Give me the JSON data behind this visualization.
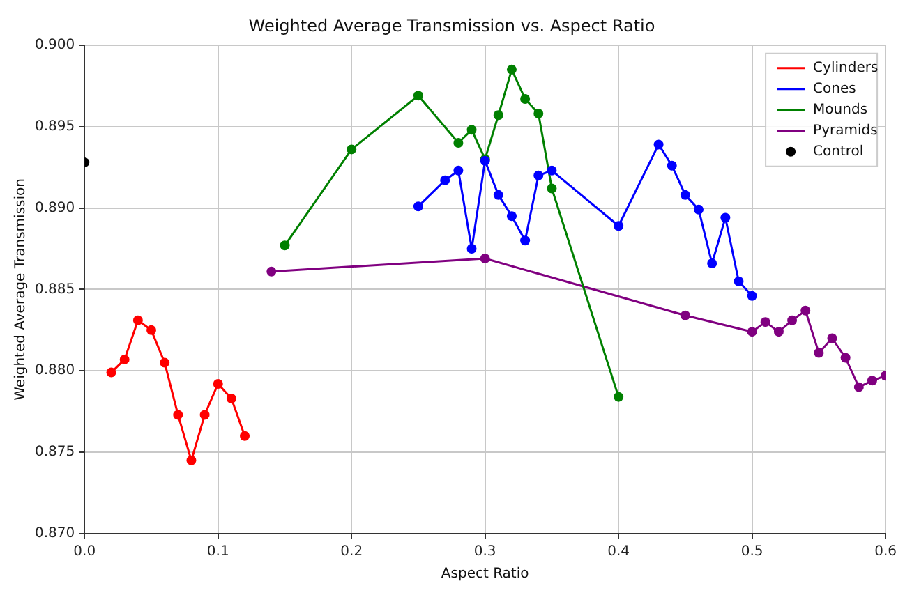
{
  "chart_data": {
    "type": "line",
    "title": "Weighted Average Transmission vs. Aspect Ratio",
    "xlabel": "Aspect Ratio",
    "ylabel": "Weighted Average Transmission",
    "xlim": [
      0,
      0.6
    ],
    "ylim": [
      0.87,
      0.9
    ],
    "xticks": [
      {
        "value": 0,
        "label": "0.0"
      },
      {
        "value": 0.1,
        "label": "0.1"
      },
      {
        "value": 0.2,
        "label": "0.2"
      },
      {
        "value": 0.3,
        "label": "0.3"
      },
      {
        "value": 0.4,
        "label": "0.4"
      },
      {
        "value": 0.5,
        "label": "0.5"
      },
      {
        "value": 0.6,
        "label": "0.6"
      }
    ],
    "yticks": [
      {
        "value": 0.87,
        "label": "0.870"
      },
      {
        "value": 0.875,
        "label": "0.875"
      },
      {
        "value": 0.88,
        "label": "0.880"
      },
      {
        "value": 0.885,
        "label": "0.885"
      },
      {
        "value": 0.89,
        "label": "0.890"
      },
      {
        "value": 0.895,
        "label": "0.895"
      },
      {
        "value": 0.9,
        "label": "0.900"
      }
    ],
    "grid": true,
    "legend": "top right",
    "marker": "circle",
    "line_style": "solid",
    "series": [
      {
        "name": "Cylinders",
        "color": "#ff0000",
        "x": [
          0.02,
          0.03,
          0.04,
          0.05,
          0.06,
          0.07,
          0.08,
          0.09,
          0.1,
          0.11,
          0.12
        ],
        "values": [
          0.8799,
          0.8807,
          0.8831,
          0.8825,
          0.8805,
          0.8773,
          0.8745,
          0.8773,
          0.8792,
          0.8783,
          0.876
        ]
      },
      {
        "name": "Cones",
        "color": "#0000ff",
        "x": [
          0.25,
          0.27,
          0.28,
          0.29,
          0.3,
          0.31,
          0.32,
          0.33,
          0.34,
          0.35,
          0.4,
          0.43,
          0.44,
          0.45,
          0.46,
          0.47,
          0.48,
          0.49,
          0.5
        ],
        "values": [
          0.8901,
          0.8917,
          0.8923,
          0.8875,
          0.8929,
          0.8908,
          0.8895,
          0.888,
          0.892,
          0.8923,
          0.8889,
          0.8939,
          0.8926,
          0.8908,
          0.8899,
          0.8866,
          0.8894,
          0.8855,
          0.8846
        ]
      },
      {
        "name": "Mounds",
        "color": "#008000",
        "x": [
          0.15,
          0.2,
          0.25,
          0.28,
          0.29,
          0.3,
          0.31,
          0.32,
          0.33,
          0.34,
          0.35,
          0.4
        ],
        "values": [
          0.8877,
          0.8936,
          0.8969,
          0.894,
          0.8948,
          0.893,
          0.8957,
          0.8985,
          0.8967,
          0.8958,
          0.8912,
          0.8784
        ]
      },
      {
        "name": "Pyramids",
        "color": "#800080",
        "x": [
          0.14,
          0.3,
          0.45,
          0.5,
          0.51,
          0.52,
          0.53,
          0.54,
          0.55,
          0.56,
          0.57,
          0.58,
          0.59,
          0.6
        ],
        "values": [
          0.8861,
          0.8869,
          0.8834,
          0.8824,
          0.883,
          0.8824,
          0.8831,
          0.8837,
          0.8811,
          0.882,
          0.8808,
          0.879,
          0.8794,
          0.8797
        ]
      },
      {
        "name": "Control",
        "type": "scatter",
        "color": "#000000",
        "x": [
          0
        ],
        "values": [
          0.8928
        ]
      }
    ]
  }
}
